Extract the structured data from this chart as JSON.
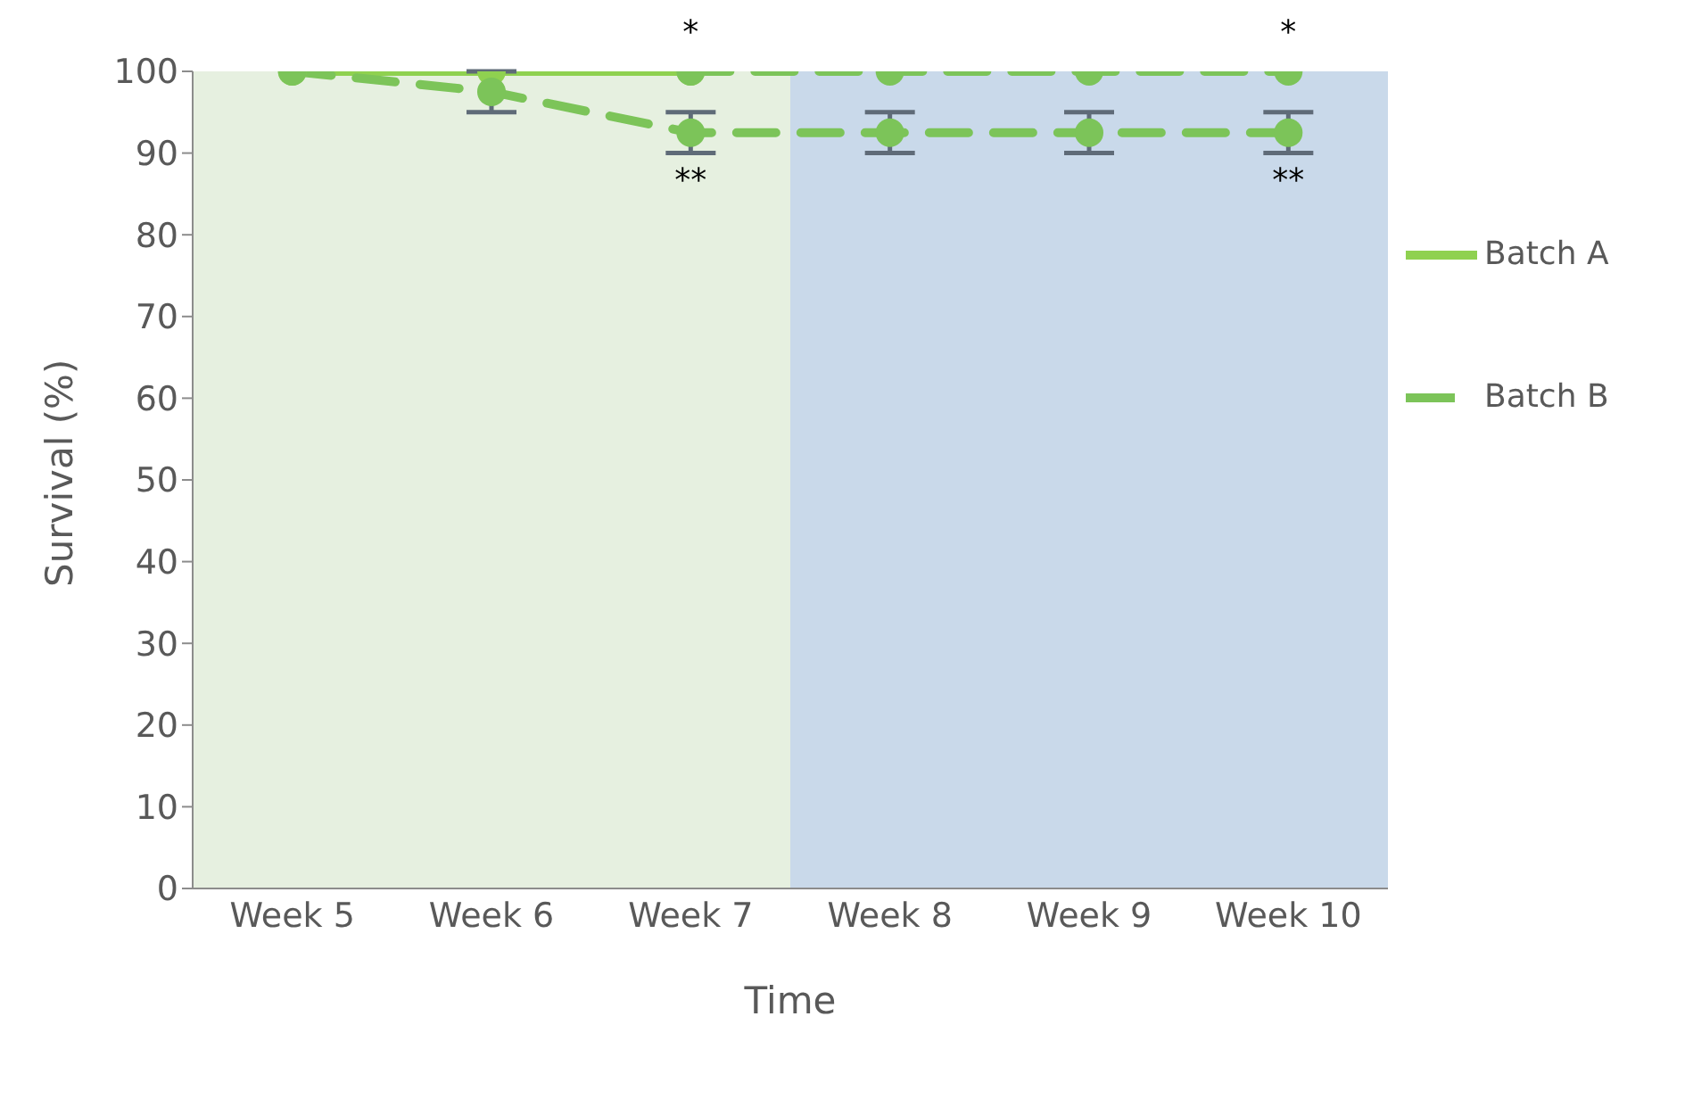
{
  "chart_data": {
    "type": "line",
    "xlabel": "Time",
    "ylabel": "Survival (%)",
    "categories": [
      "Week 5",
      "Week 6",
      "Week 7",
      "Week 8",
      "Week 9",
      "Week 10"
    ],
    "series": [
      {
        "name": "Batch A",
        "color": "#8fd150",
        "values": [
          100,
          100,
          100,
          null,
          null,
          null
        ],
        "line_style": "solid"
      },
      {
        "name": "Batch B",
        "color": "#7cc459",
        "values": [
          100,
          97.5,
          92.5,
          92.5,
          92.5,
          92.5
        ],
        "line_style": "dashed",
        "errors": [
          null,
          2.5,
          2.5,
          2.5,
          2.5,
          2.5
        ]
      },
      {
        "color": "#7cc459",
        "values": [
          null,
          null,
          100,
          100,
          100,
          100
        ],
        "line_style": "dashed"
      }
    ],
    "ylim": [
      0,
      100
    ],
    "yticks": [
      0,
      10,
      20,
      30,
      40,
      50,
      60,
      70,
      80,
      90,
      100
    ],
    "grid": false,
    "legend": "right",
    "marker": "circle",
    "bands": [
      {
        "axis": "x",
        "from": "Week 5",
        "to": "Week 7",
        "color": "#e6f0e0"
      },
      {
        "axis": "x",
        "from": "Week 8",
        "to": "Week 10",
        "color": "#c9d9ea"
      }
    ],
    "annotations": [
      {
        "text": "*",
        "x": "Week 7",
        "y": 100
      },
      {
        "text": "**",
        "x": "Week 7",
        "y": 92.5
      },
      {
        "text": "*",
        "x": "Week 10",
        "y": 100
      },
      {
        "text": "**",
        "x": "Week 10",
        "y": 92.5
      }
    ]
  }
}
